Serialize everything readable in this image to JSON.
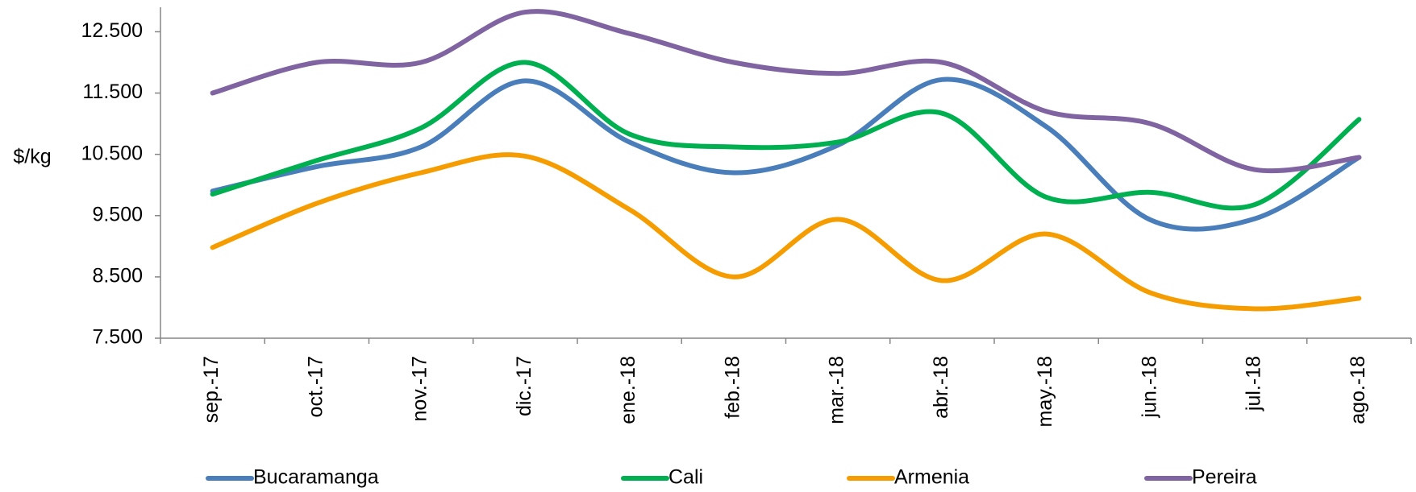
{
  "chart_data": {
    "type": "line",
    "y_label": "$/kg",
    "categories": [
      "sep.-17",
      "oct.-17",
      "nov.-17",
      "dic.-17",
      "ene.-18",
      "feb.-18",
      "mar.-18",
      "abr.-18",
      "may.-18",
      "jun.-18",
      "jul.-18",
      "ago.-18"
    ],
    "series": [
      {
        "name": "Bucaramanga",
        "color": "#4a7ebb",
        "values": [
          9900,
          10300,
          10620,
          11700,
          10700,
          10200,
          10650,
          11720,
          10950,
          9430,
          9450,
          10450
        ]
      },
      {
        "name": "Cali",
        "color": "#00b050",
        "values": [
          9850,
          10400,
          10930,
          12000,
          10830,
          10620,
          10700,
          11170,
          9800,
          9880,
          9680,
          11070
        ]
      },
      {
        "name": "Armenia",
        "color": "#f59d00",
        "values": [
          8980,
          9700,
          10200,
          10470,
          9600,
          8500,
          9440,
          8440,
          9200,
          8240,
          7980,
          8150
        ]
      },
      {
        "name": "Pereira",
        "color": "#8064a2",
        "values": [
          11500,
          12000,
          12000,
          12820,
          12470,
          12000,
          11820,
          12000,
          11200,
          11000,
          10250,
          10450
        ]
      }
    ],
    "ylim": [
      7500,
      12900
    ],
    "yticks": [
      {
        "value": 7500,
        "label": "7.500"
      },
      {
        "value": 8500,
        "label": "8.500"
      },
      {
        "value": 9500,
        "label": "9.500"
      },
      {
        "value": 10500,
        "label": "10.500"
      },
      {
        "value": 11500,
        "label": "11.500"
      },
      {
        "value": 12500,
        "label": "12.500"
      }
    ],
    "legend": "bottom",
    "grid": false
  }
}
